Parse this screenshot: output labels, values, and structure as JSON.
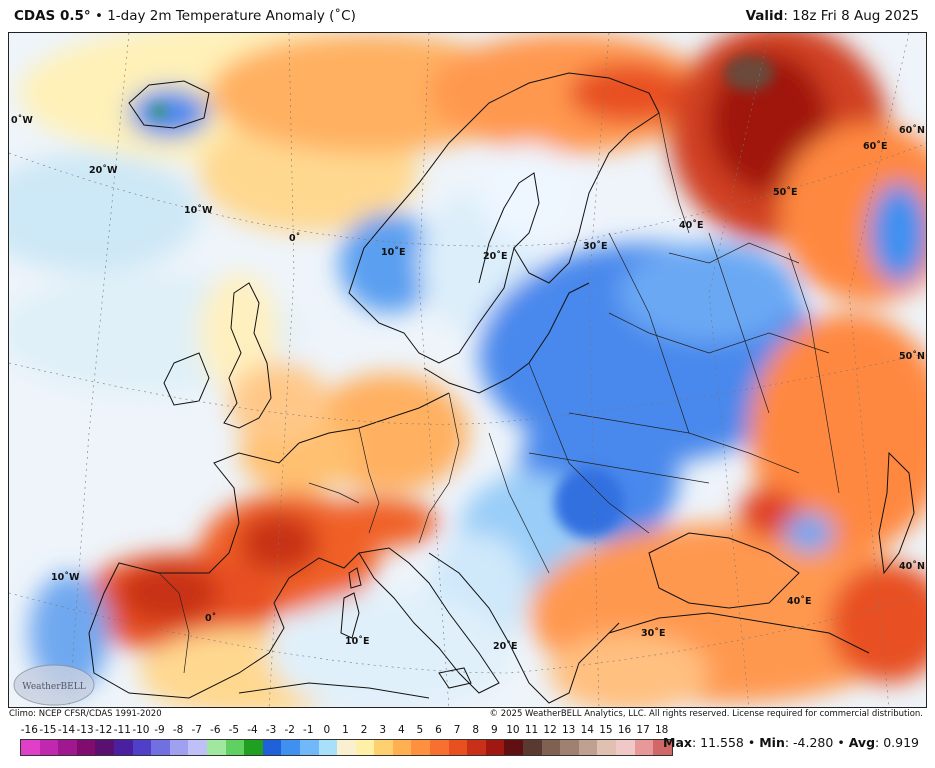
{
  "header": {
    "model": "CDAS 0.5",
    "degree_symbol": "°",
    "bullet": "•",
    "product": "1-day 2m Temperature Anomaly (˚C)",
    "valid_label": "Valid",
    "valid_value": "18z Fri 8 Aug 2025"
  },
  "footer": {
    "climo": "Climo: NCEP CFSR/CDAS 1991-2020",
    "copyright": "© 2025 WeatherBELL Analytics, LLC. All rights reserved. License required for commercial distribution."
  },
  "logo_text": "WeatherBELL",
  "colorbar": {
    "labels": [
      "-16",
      "-15",
      "-14",
      "-13",
      "-12",
      "-11",
      "-10",
      "-9",
      "-8",
      "-7",
      "-6",
      "-5",
      "-4",
      "-3",
      "-2",
      "-1",
      "0",
      "1",
      "2",
      "3",
      "4",
      "5",
      "6",
      "7",
      "8",
      "9",
      "10",
      "11",
      "12",
      "13",
      "14",
      "15",
      "16",
      "17",
      "18"
    ],
    "colors": [
      "#e040c8",
      "#c028b0",
      "#a01890",
      "#800c70",
      "#5a1070",
      "#4a20a0",
      "#5040c8",
      "#7070e0",
      "#a0a0f0",
      "#c0c0f8",
      "#a0e8a0",
      "#60d060",
      "#20a020",
      "#2060d8",
      "#4090f0",
      "#70b8f8",
      "#a8e0fa",
      "#f8f0d0",
      "#fff0a8",
      "#ffd070",
      "#ffb050",
      "#ff9040",
      "#f87030",
      "#e85020",
      "#c83018",
      "#a01810",
      "#601010",
      "#5a3a30",
      "#806050",
      "#a08070",
      "#c0a090",
      "#e0c0b0",
      "#f0c8c8",
      "#e89898",
      "#d06868"
    ]
  },
  "stats": {
    "max_label": "Max",
    "max_value": "11.558",
    "min_label": "Min",
    "min_value": "-4.280",
    "avg_label": "Avg",
    "avg_value": "0.919",
    "sep": "•"
  },
  "map_labels": {
    "lon_0W_top": "0˚W",
    "lon_20W": "20˚W",
    "lon_10W_n": "10˚W",
    "lon_0_n": "0˚",
    "lon_10E_n": "10˚E",
    "lon_20E_n": "20˚E",
    "lon_30E_n": "30˚E",
    "lon_40E_n": "40˚E",
    "lon_50E": "50˚E",
    "lon_60E": "60˚E",
    "lon_60N": "60˚N",
    "lat_50N": "50˚N",
    "lat_40N": "40˚N",
    "lon_10W_s": "10˚W",
    "lon_0_s": "0˚",
    "lon_10E_s": "10˚E",
    "lon_20E_s": "20˚E",
    "lon_30E_s": "30˚E",
    "lon_40E_s": "40˚E"
  }
}
